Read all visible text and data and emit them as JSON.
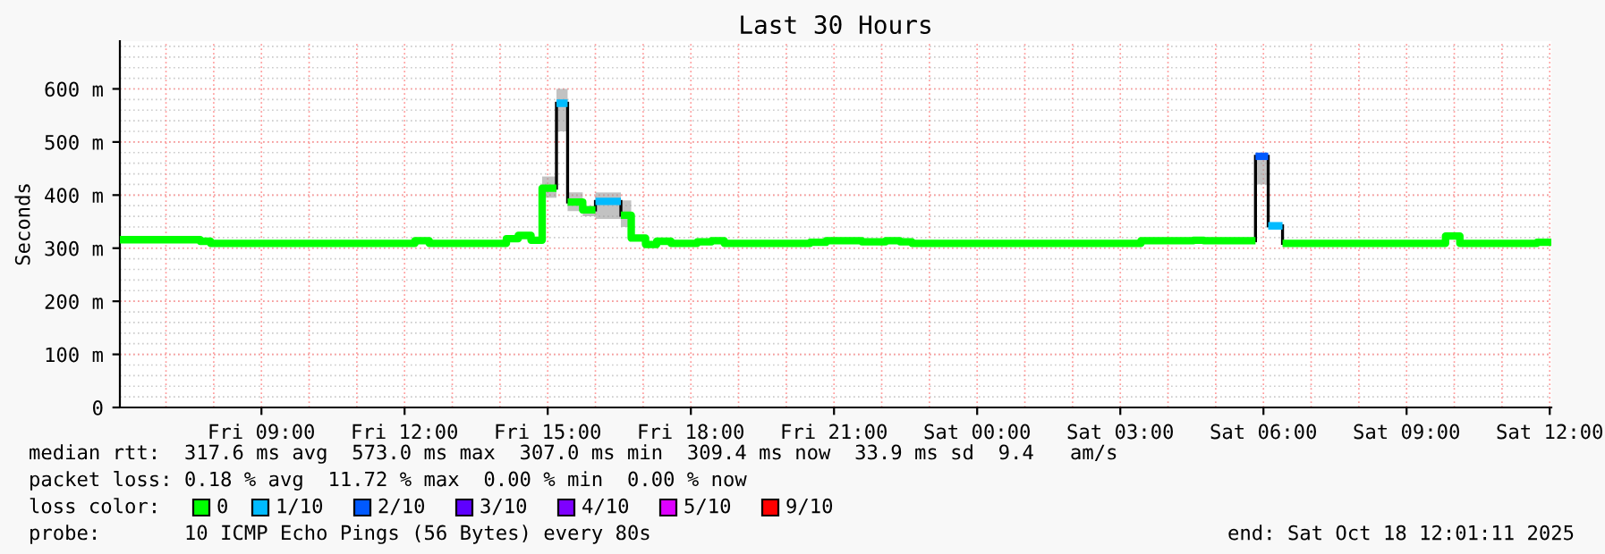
{
  "chart_data": {
    "type": "line",
    "title": "Last 30 Hours",
    "ylabel": "Seconds",
    "legend_title": "loss color:",
    "x": [
      "2025-10-17T06:02",
      "2025-10-17T07:43",
      "2025-10-17T07:43",
      "2025-10-17T07:56",
      "2025-10-17T07:56",
      "2025-10-17T12:13",
      "2025-10-17T12:13",
      "2025-10-17T12:31",
      "2025-10-17T12:31",
      "2025-10-17T14:08",
      "2025-10-17T14:08",
      "2025-10-17T14:23",
      "2025-10-17T14:23",
      "2025-10-17T14:39",
      "2025-10-17T14:39",
      "2025-10-17T14:53",
      "2025-10-17T14:53",
      "2025-10-17T15:11",
      "2025-10-17T15:11",
      "2025-10-17T15:25",
      "2025-10-17T15:25",
      "2025-10-17T15:44",
      "2025-10-17T15:44",
      "2025-10-17T16:00",
      "2025-10-17T16:00",
      "2025-10-17T16:32",
      "2025-10-17T16:32",
      "2025-10-17T16:45",
      "2025-10-17T16:45",
      "2025-10-17T17:03",
      "2025-10-17T17:03",
      "2025-10-17T17:17",
      "2025-10-17T17:17",
      "2025-10-17T17:35",
      "2025-10-17T17:35",
      "2025-10-17T18:08",
      "2025-10-17T18:08",
      "2025-10-17T18:26",
      "2025-10-17T18:26",
      "2025-10-17T18:42",
      "2025-10-17T18:42",
      "2025-10-17T20:30",
      "2025-10-17T20:30",
      "2025-10-17T20:50",
      "2025-10-17T20:50",
      "2025-10-17T21:35",
      "2025-10-17T21:35",
      "2025-10-17T22:05",
      "2025-10-17T22:05",
      "2025-10-17T22:23",
      "2025-10-17T22:23",
      "2025-10-17T22:38",
      "2025-10-17T22:38",
      "2025-10-18T03:26",
      "2025-10-18T03:26",
      "2025-10-18T04:32",
      "2025-10-18T04:32",
      "2025-10-18T04:45",
      "2025-10-18T04:45",
      "2025-10-18T05:50",
      "2025-10-18T05:50",
      "2025-10-18T06:06",
      "2025-10-18T06:06",
      "2025-10-18T06:24",
      "2025-10-18T06:24",
      "2025-10-18T09:49",
      "2025-10-18T09:49",
      "2025-10-18T10:07",
      "2025-10-18T10:07",
      "2025-10-18T11:44",
      "2025-10-18T11:44",
      "2025-10-18T11:59",
      "2025-10-18T11:59",
      "2025-10-18T12:02"
    ],
    "series": [
      {
        "name": "0",
        "color": "#00ff00",
        "values": [
          316,
          316,
          313,
          313,
          309,
          309,
          314,
          314,
          309,
          309,
          318,
          318,
          324,
          324,
          315,
          315,
          413,
          413,
          null,
          null,
          387,
          387,
          372,
          372,
          null,
          null,
          362,
          362,
          319,
          319,
          307,
          307,
          313,
          313,
          309,
          309,
          312,
          312,
          314,
          314,
          309,
          309,
          311,
          311,
          314,
          314,
          312,
          312,
          314,
          314,
          312,
          312,
          309,
          309,
          314,
          314,
          315,
          315,
          314,
          314,
          null,
          null,
          null,
          null,
          309,
          309,
          323,
          323,
          309,
          309,
          311,
          311,
          311,
          311
        ],
        "lower": [
          null,
          null,
          null,
          null,
          null,
          null,
          null,
          null,
          null,
          null,
          null,
          null,
          null,
          null,
          null,
          null,
          395,
          395,
          null,
          null,
          370,
          370,
          360,
          360,
          null,
          null,
          340,
          340,
          null,
          null,
          null,
          null,
          null,
          null,
          null,
          null,
          null,
          null,
          null,
          null,
          null,
          null,
          null,
          null,
          null,
          null,
          null,
          null,
          null,
          null,
          null,
          null,
          null,
          null,
          null,
          null,
          null,
          null,
          null,
          null,
          null,
          null,
          null,
          null,
          null,
          null,
          null,
          null,
          null,
          null,
          null,
          null,
          null,
          null
        ],
        "upper": [
          null,
          null,
          null,
          null,
          null,
          null,
          null,
          null,
          null,
          null,
          null,
          null,
          null,
          null,
          null,
          null,
          435,
          435,
          null,
          null,
          405,
          405,
          380,
          380,
          null,
          null,
          390,
          390,
          null,
          null,
          null,
          null,
          null,
          null,
          null,
          null,
          null,
          null,
          null,
          null,
          null,
          null,
          null,
          null,
          null,
          null,
          null,
          null,
          null,
          null,
          null,
          null,
          null,
          null,
          null,
          null,
          null,
          null,
          null,
          null,
          null,
          null,
          null,
          null,
          null,
          null,
          null,
          null,
          null,
          null,
          null,
          null,
          null,
          null
        ]
      },
      {
        "name": "1/10",
        "color": "#00bbff",
        "values": [
          null,
          null,
          null,
          null,
          null,
          null,
          null,
          null,
          null,
          null,
          null,
          null,
          null,
          null,
          null,
          null,
          null,
          null,
          573,
          573,
          null,
          null,
          null,
          null,
          388,
          388,
          null,
          null,
          null,
          null,
          null,
          null,
          null,
          null,
          null,
          null,
          null,
          null,
          null,
          null,
          null,
          null,
          null,
          null,
          null,
          null,
          null,
          null,
          null,
          null,
          null,
          null,
          null,
          null,
          null,
          null,
          null,
          null,
          null,
          null,
          null,
          null,
          342,
          342,
          null,
          null,
          null,
          null,
          null,
          null,
          null,
          null,
          null,
          null
        ],
        "lower": [
          null,
          null,
          null,
          null,
          null,
          null,
          null,
          null,
          null,
          null,
          null,
          null,
          null,
          null,
          null,
          null,
          null,
          null,
          520,
          520,
          null,
          null,
          null,
          null,
          355,
          355,
          null,
          null,
          null,
          null,
          null,
          null,
          null,
          null,
          null,
          null,
          null,
          null,
          null,
          null,
          null,
          null,
          null,
          null,
          null,
          null,
          null,
          null,
          null,
          null,
          null,
          null,
          null,
          null,
          null,
          null,
          null,
          null,
          null,
          null,
          null,
          null,
          null,
          null,
          null,
          null,
          null,
          null,
          null,
          null,
          null,
          null,
          null,
          null
        ],
        "upper": [
          null,
          null,
          null,
          null,
          null,
          null,
          null,
          null,
          null,
          null,
          null,
          null,
          null,
          null,
          null,
          null,
          null,
          null,
          600,
          600,
          null,
          null,
          null,
          null,
          405,
          405,
          null,
          null,
          null,
          null,
          null,
          null,
          null,
          null,
          null,
          null,
          null,
          null,
          null,
          null,
          null,
          null,
          null,
          null,
          null,
          null,
          null,
          null,
          null,
          null,
          null,
          null,
          null,
          null,
          null,
          null,
          null,
          null,
          null,
          null,
          null,
          null,
          null,
          null,
          null,
          null,
          null,
          null,
          null,
          null,
          null,
          null,
          null,
          null
        ]
      },
      {
        "name": "2/10",
        "color": "#0059ff",
        "values": [
          null,
          null,
          null,
          null,
          null,
          null,
          null,
          null,
          null,
          null,
          null,
          null,
          null,
          null,
          null,
          null,
          null,
          null,
          null,
          null,
          null,
          null,
          null,
          null,
          null,
          null,
          null,
          null,
          null,
          null,
          null,
          null,
          null,
          null,
          null,
          null,
          null,
          null,
          null,
          null,
          null,
          null,
          null,
          null,
          null,
          null,
          null,
          null,
          null,
          null,
          null,
          null,
          null,
          null,
          null,
          null,
          null,
          null,
          null,
          null,
          473,
          473,
          null,
          null,
          null,
          null,
          null,
          null,
          null,
          null,
          null,
          null,
          null,
          null
        ],
        "lower": [
          null,
          null,
          null,
          null,
          null,
          null,
          null,
          null,
          null,
          null,
          null,
          null,
          null,
          null,
          null,
          null,
          null,
          null,
          null,
          null,
          null,
          null,
          null,
          null,
          null,
          null,
          null,
          null,
          null,
          null,
          null,
          null,
          null,
          null,
          null,
          null,
          null,
          null,
          null,
          null,
          null,
          null,
          null,
          null,
          null,
          null,
          null,
          null,
          null,
          null,
          null,
          null,
          null,
          null,
          null,
          null,
          null,
          null,
          null,
          null,
          420,
          420,
          null,
          null,
          null,
          null,
          null,
          null,
          null,
          null,
          null,
          null,
          null,
          null
        ],
        "upper": [
          null,
          null,
          null,
          null,
          null,
          null,
          null,
          null,
          null,
          null,
          null,
          null,
          null,
          null,
          null,
          null,
          null,
          null,
          null,
          null,
          null,
          null,
          null,
          null,
          null,
          null,
          null,
          null,
          null,
          null,
          null,
          null,
          null,
          null,
          null,
          null,
          null,
          null,
          null,
          null,
          null,
          null,
          null,
          null,
          null,
          null,
          null,
          null,
          null,
          null,
          null,
          null,
          null,
          null,
          null,
          null,
          null,
          null,
          null,
          null,
          466,
          466,
          null,
          null,
          null,
          null,
          null,
          null,
          null,
          null,
          null,
          null,
          null,
          null
        ]
      },
      {
        "name": "3/10",
        "color": "#5e00ff",
        "values": [
          null,
          null,
          null,
          null,
          null,
          null,
          null,
          null,
          null,
          null,
          null,
          null,
          null,
          null,
          null,
          null,
          null,
          null,
          null,
          null,
          null,
          null,
          null,
          null,
          null,
          null,
          null,
          null,
          null,
          null,
          null,
          null,
          null,
          null,
          null,
          null,
          null,
          null,
          null,
          null,
          null,
          null,
          null,
          null,
          null,
          null,
          null,
          null,
          null,
          null,
          null,
          null,
          null,
          null,
          null,
          null,
          null,
          null,
          null,
          null,
          null,
          null,
          null,
          null,
          null,
          null,
          null,
          null,
          null,
          null,
          null,
          null,
          null,
          null
        ]
      },
      {
        "name": "4/10",
        "color": "#7e00ff",
        "values": [
          null,
          null,
          null,
          null,
          null,
          null,
          null,
          null,
          null,
          null,
          null,
          null,
          null,
          null,
          null,
          null,
          null,
          null,
          null,
          null,
          null,
          null,
          null,
          null,
          null,
          null,
          null,
          null,
          null,
          null,
          null,
          null,
          null,
          null,
          null,
          null,
          null,
          null,
          null,
          null,
          null,
          null,
          null,
          null,
          null,
          null,
          null,
          null,
          null,
          null,
          null,
          null,
          null,
          null,
          null,
          null,
          null,
          null,
          null,
          null,
          null,
          null,
          null,
          null,
          null,
          null,
          null,
          null,
          null,
          null,
          null,
          null,
          null,
          null
        ]
      },
      {
        "name": "5/10",
        "color": "#dd00ff",
        "values": [
          null,
          null,
          null,
          null,
          null,
          null,
          null,
          null,
          null,
          null,
          null,
          null,
          null,
          null,
          null,
          null,
          null,
          null,
          null,
          null,
          null,
          null,
          null,
          null,
          null,
          null,
          null,
          null,
          null,
          null,
          null,
          null,
          null,
          null,
          null,
          null,
          null,
          null,
          null,
          null,
          null,
          null,
          null,
          null,
          null,
          null,
          null,
          null,
          null,
          null,
          null,
          null,
          null,
          null,
          null,
          null,
          null,
          null,
          null,
          null,
          null,
          null,
          null,
          null,
          null,
          null,
          null,
          null,
          null,
          null,
          null,
          null,
          null,
          null
        ]
      },
      {
        "name": "9/10",
        "color": "#ff0000",
        "values": [
          null,
          null,
          null,
          null,
          null,
          null,
          null,
          null,
          null,
          null,
          null,
          null,
          null,
          null,
          null,
          null,
          null,
          null,
          null,
          null,
          null,
          null,
          null,
          null,
          null,
          null,
          null,
          null,
          null,
          null,
          null,
          null,
          null,
          null,
          null,
          null,
          null,
          null,
          null,
          null,
          null,
          null,
          null,
          null,
          null,
          null,
          null,
          null,
          null,
          null,
          null,
          null,
          null,
          null,
          null,
          null,
          null,
          null,
          null,
          null,
          null,
          null,
          null,
          null,
          null,
          null,
          null,
          null,
          null,
          null,
          null,
          null,
          null,
          null
        ]
      }
    ],
    "xlim": [
      "2025-10-17T06:02",
      "2025-10-18T12:02"
    ],
    "xticks": [
      {
        "value": "2025-10-17T09:00",
        "label": "Fri 09:00"
      },
      {
        "value": "2025-10-17T12:00",
        "label": "Fri 12:00"
      },
      {
        "value": "2025-10-17T15:00",
        "label": "Fri 15:00"
      },
      {
        "value": "2025-10-17T18:00",
        "label": "Fri 18:00"
      },
      {
        "value": "2025-10-17T21:00",
        "label": "Fri 21:00"
      },
      {
        "value": "2025-10-18T00:00",
        "label": "Sat 00:00"
      },
      {
        "value": "2025-10-18T03:00",
        "label": "Sat 03:00"
      },
      {
        "value": "2025-10-18T06:00",
        "label": "Sat 06:00"
      },
      {
        "value": "2025-10-18T09:00",
        "label": "Sat 09:00"
      },
      {
        "value": "2025-10-18T12:00",
        "label": "Sat 12:00"
      }
    ],
    "ylim": [
      0,
      690
    ],
    "yticks": [
      0,
      {
        "value": 100,
        "label": "100 m"
      },
      {
        "value": 200,
        "label": "200 m"
      },
      {
        "value": 300,
        "label": "300 m"
      },
      {
        "value": 400,
        "label": "400 m"
      },
      {
        "value": 500,
        "label": "500 m"
      },
      {
        "value": 600,
        "label": "600 m"
      }
    ],
    "grid": true,
    "legend": "bottom",
    "annotations": [
      "median rtt:  317.6 ms avg  573.0 ms max  307.0 ms min  309.4 ms now  33.9 ms sd  9.4   am/s",
      "packet loss: 0.18 % avg  11.72 % max  0.00 % min  0.00 % now",
      "probe:       10 ICMP Echo Pings (56 Bytes) every 80s",
      "end: Sat Oct 18 12:01:11 2025"
    ]
  }
}
